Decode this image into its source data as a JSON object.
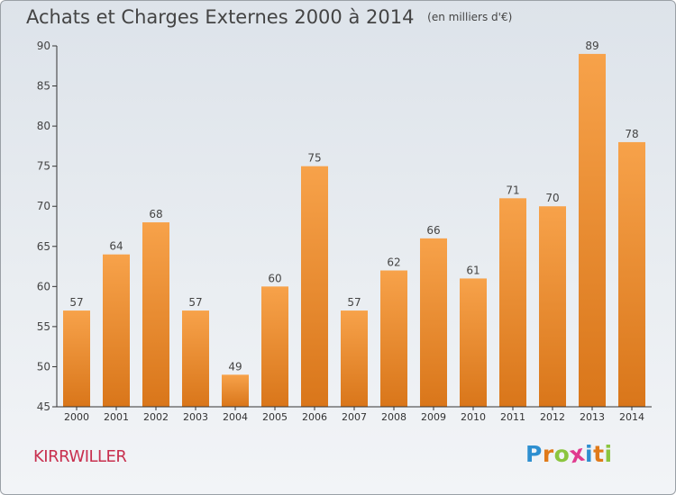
{
  "title": "Achats et Charges Externes 2000 à 2014",
  "subtitle": "(en milliers d'€)",
  "commune": "KIRRWILLER",
  "logo": {
    "letters": [
      "P",
      "r",
      "o",
      "x",
      "i",
      "t",
      "i"
    ],
    "colors": [
      "#2e8fd0",
      "#e07a1a",
      "#8bc53f",
      "#e03a8e",
      "#2e8fd0",
      "#e07a1a",
      "#8bc53f"
    ]
  },
  "colors": {
    "bar_light": "#f7a24a",
    "bar_dark": "#d9761a",
    "axis": "#333333",
    "text": "#444444",
    "commune": "#c8304f"
  },
  "chart_data": {
    "type": "bar",
    "categories": [
      "2000",
      "2001",
      "2002",
      "2003",
      "2004",
      "2005",
      "2006",
      "2007",
      "2008",
      "2009",
      "2010",
      "2011",
      "2012",
      "2013",
      "2014"
    ],
    "values": [
      57,
      64,
      68,
      57,
      49,
      60,
      75,
      57,
      62,
      66,
      61,
      71,
      70,
      89,
      78
    ],
    "ylim": [
      45,
      90
    ],
    "yticks": [
      45,
      50,
      55,
      60,
      65,
      70,
      75,
      80,
      85,
      90
    ],
    "grid": false,
    "data_labels": true,
    "xlabel": "",
    "ylabel": ""
  }
}
